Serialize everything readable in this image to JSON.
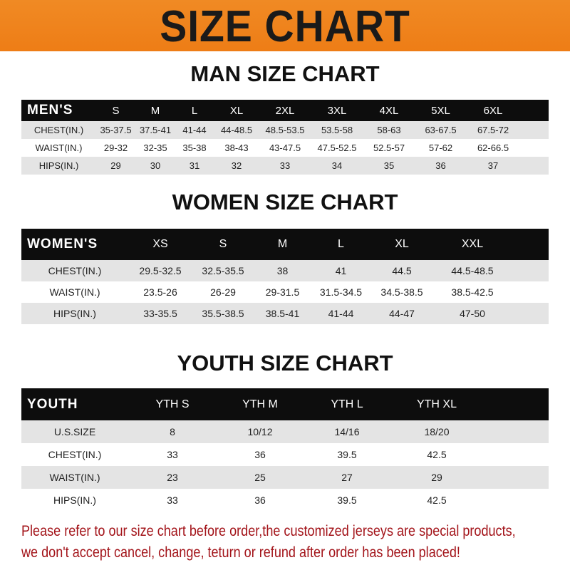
{
  "banner_title": "SIZE CHART",
  "men": {
    "title": "MAN SIZE CHART",
    "header": [
      "MEN'S",
      "S",
      "M",
      "L",
      "XL",
      "2XL",
      "3XL",
      "4XL",
      "5XL",
      "6XL"
    ],
    "rows": [
      [
        "CHEST(IN.)",
        "35-37.5",
        "37.5-41",
        "41-44",
        "44-48.5",
        "48.5-53.5",
        "53.5-58",
        "58-63",
        "63-67.5",
        "67.5-72"
      ],
      [
        "WAIST(IN.)",
        "29-32",
        "32-35",
        "35-38",
        "38-43",
        "43-47.5",
        "47.5-52.5",
        "52.5-57",
        "57-62",
        "62-66.5"
      ],
      [
        "HIPS(IN.)",
        "29",
        "30",
        "31",
        "32",
        "33",
        "34",
        "35",
        "36",
        "37"
      ]
    ]
  },
  "women": {
    "title": "WOMEN SIZE CHART",
    "header": [
      "WOMEN'S",
      "XS",
      "S",
      "M",
      "L",
      "XL",
      "XXL"
    ],
    "rows": [
      [
        "CHEST(IN.)",
        "29.5-32.5",
        "32.5-35.5",
        "38",
        "41",
        "44.5",
        "44.5-48.5"
      ],
      [
        "WAIST(IN.)",
        "23.5-26",
        "26-29",
        "29-31.5",
        "31.5-34.5",
        "34.5-38.5",
        "38.5-42.5"
      ],
      [
        "HIPS(IN.)",
        "33-35.5",
        "35.5-38.5",
        "38.5-41",
        "41-44",
        "44-47",
        "47-50"
      ]
    ]
  },
  "youth": {
    "title": "YOUTH SIZE CHART",
    "header": [
      "YOUTH",
      "YTH S",
      "YTH M",
      "YTH L",
      "YTH XL"
    ],
    "rows": [
      [
        "U.S.SIZE",
        "8",
        "10/12",
        "14/16",
        "18/20"
      ],
      [
        "CHEST(IN.)",
        "33",
        "36",
        "39.5",
        "42.5"
      ],
      [
        "WAIST(IN.)",
        "23",
        "25",
        "27",
        "29"
      ],
      [
        "HIPS(IN.)",
        "33",
        "36",
        "39.5",
        "42.5"
      ]
    ]
  },
  "notice": {
    "line1": "Please refer to our size chart before order,the customized jerseys are special products,",
    "line2": "we don't accept cancel, change, teturn or refund after order has been placed!"
  },
  "colors": {
    "banner": "#ee7d16",
    "header_row": "#0d0d0d",
    "stripe": "#e4e4e4",
    "notice": "#a3141a"
  }
}
